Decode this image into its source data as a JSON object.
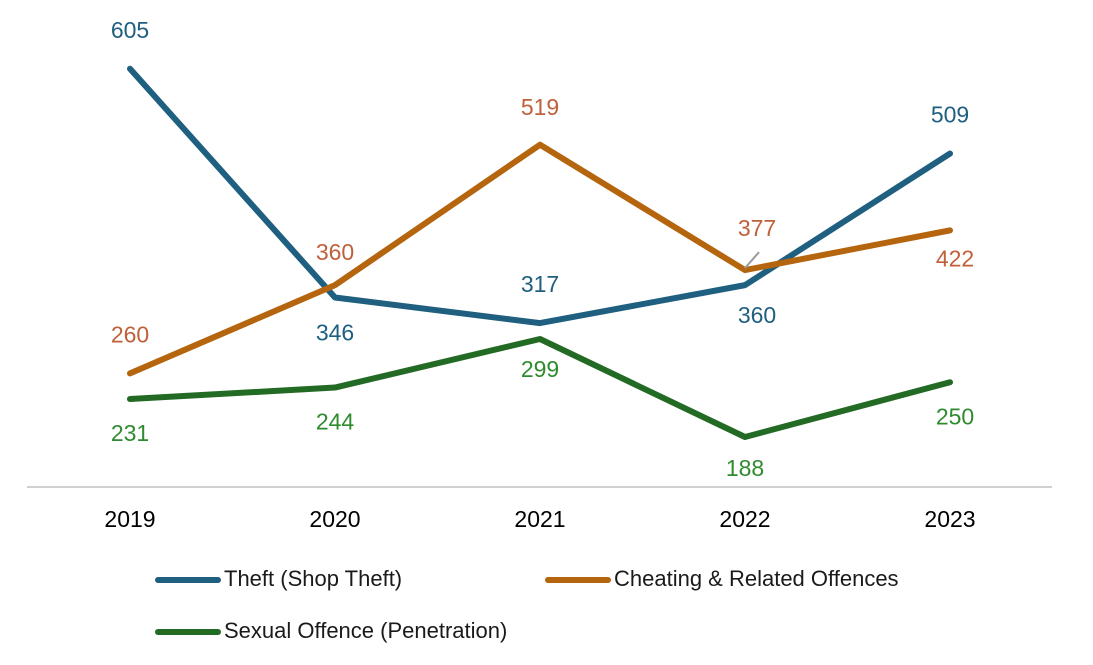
{
  "chart_data": {
    "type": "line",
    "title": "",
    "xlabel": "",
    "ylabel": "",
    "categories": [
      "2019",
      "2020",
      "2021",
      "2022",
      "2023"
    ],
    "ylim": [
      0,
      700
    ],
    "grid": false,
    "legend_position": "bottom",
    "series": [
      {
        "name": "Theft (Shop Theft)",
        "color": "#1f5f80",
        "values": [
          605,
          346,
          317,
          360,
          509
        ],
        "labels": [
          "605",
          "346",
          "317",
          "360",
          "509"
        ],
        "label_side": [
          "above",
          "below",
          "above",
          "below",
          "above"
        ]
      },
      {
        "name": "Cheating & Related Offences",
        "color": "#b5650d",
        "label_color": "#c0603a",
        "values": [
          260,
          360,
          519,
          377,
          422
        ],
        "labels": [
          "260",
          "360",
          "519",
          "377",
          "422"
        ],
        "label_side": [
          "above",
          "above",
          "above",
          "above",
          "below"
        ]
      },
      {
        "name": "Sexual Offence (Penetration)",
        "color": "#236b24",
        "label_color": "#2e8b2e",
        "values": [
          231,
          244,
          299,
          188,
          250
        ],
        "labels": [
          "231",
          "244",
          "299",
          "188",
          "250"
        ],
        "label_side": [
          "below",
          "below",
          "below",
          "below",
          "below"
        ]
      }
    ]
  }
}
